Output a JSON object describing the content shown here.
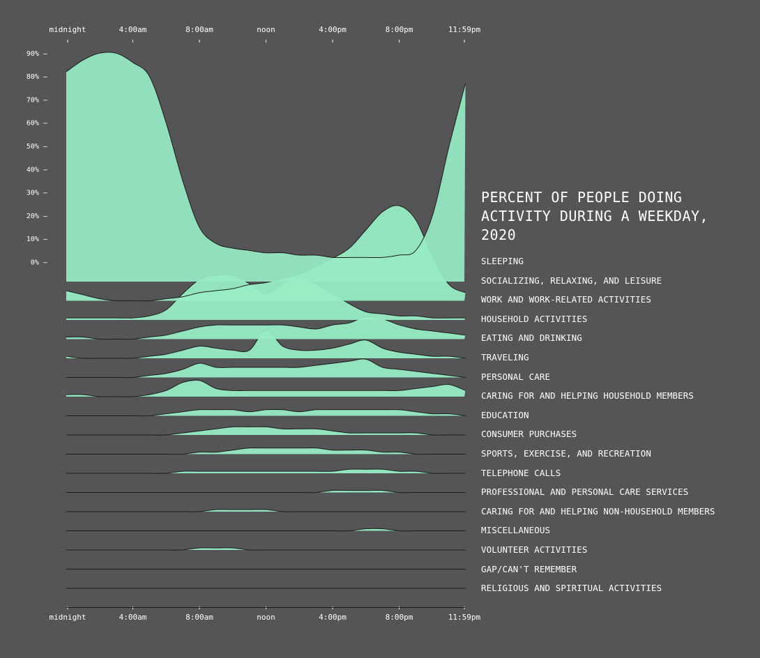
{
  "title_lines": [
    "PERCENT OF PEOPLE DOING",
    "ACTIVITY DURING A WEEKDAY,",
    "2020"
  ],
  "x_ticks": [
    "midnight",
    "4:00am",
    "8:00am",
    "noon",
    "4:00pm",
    "8:00pm",
    "11:59pm"
  ],
  "y_ticks": [
    "0%",
    "10%",
    "20%",
    "30%",
    "40%",
    "50%",
    "60%",
    "70%",
    "80%",
    "90%"
  ],
  "colors": {
    "background": "#555557",
    "fill": "#97ecc4",
    "stroke": "#1b1b1b",
    "text": "#ffffff"
  },
  "chart_data": {
    "type": "area",
    "x_hours": [
      0,
      1,
      2,
      3,
      4,
      5,
      6,
      7,
      8,
      9,
      10,
      11,
      12,
      13,
      14,
      15,
      16,
      17,
      18,
      19,
      20,
      21,
      22,
      23,
      23.98
    ],
    "ylim": [
      0,
      90
    ],
    "series": [
      {
        "name": "SLEEPING",
        "values": [
          82,
          87,
          90,
          90,
          86,
          80,
          60,
          35,
          15,
          8,
          6,
          5,
          4,
          4,
          3,
          3,
          2,
          2,
          2,
          2,
          3,
          5,
          20,
          50,
          77
        ]
      },
      {
        "name": "SOCIALIZING, RELAXING, AND LEISURE",
        "values": [
          5,
          3,
          1,
          0,
          0,
          0,
          1,
          2,
          4,
          5,
          6,
          8,
          9,
          11,
          13,
          17,
          21,
          26,
          35,
          44,
          47,
          40,
          22,
          8,
          4
        ]
      },
      {
        "name": "WORK AND WORK-RELATED ACTIVITIES",
        "values": [
          1,
          1,
          1,
          1,
          1,
          2,
          5,
          13,
          20,
          22,
          22,
          18,
          13,
          18,
          20,
          18,
          13,
          8,
          4,
          3,
          2,
          2,
          1,
          1,
          1
        ]
      },
      {
        "name": "HOUSEHOLD ACTIVITIES",
        "values": [
          1,
          1,
          0,
          0,
          0,
          1,
          2,
          4,
          6,
          7,
          7,
          7,
          7,
          7,
          6,
          5,
          7,
          8,
          11,
          10,
          7,
          5,
          4,
          3,
          2
        ]
      },
      {
        "name": "EATING AND DRINKING",
        "values": [
          1,
          0,
          0,
          0,
          0,
          1,
          2,
          4,
          6,
          5,
          4,
          4,
          14,
          6,
          4,
          4,
          5,
          7,
          9,
          5,
          3,
          2,
          1,
          1,
          0
        ]
      },
      {
        "name": "TRAVELING",
        "values": [
          0,
          0,
          0,
          0,
          0,
          1,
          2,
          4,
          7,
          5,
          5,
          5,
          5,
          5,
          5,
          6,
          7,
          8,
          9,
          5,
          4,
          3,
          2,
          1,
          0
        ]
      },
      {
        "name": "PERSONAL CARE",
        "values": [
          1,
          1,
          0,
          0,
          0,
          1,
          3,
          7,
          8,
          4,
          3,
          3,
          3,
          3,
          3,
          3,
          3,
          3,
          3,
          3,
          3,
          4,
          5,
          6,
          3
        ]
      },
      {
        "name": "CARING FOR AND HELPING HOUSEHOLD MEMBERS",
        "values": [
          0,
          0,
          0,
          0,
          0,
          0,
          1,
          2,
          3,
          3,
          3,
          2,
          3,
          3,
          2,
          3,
          3,
          3,
          3,
          3,
          3,
          2,
          1,
          1,
          0
        ]
      },
      {
        "name": "EDUCATION",
        "values": [
          0,
          0,
          0,
          0,
          0,
          0,
          0,
          1,
          2,
          3,
          4,
          4,
          4,
          3,
          3,
          3,
          2,
          1,
          1,
          1,
          1,
          1,
          0,
          0,
          0
        ]
      },
      {
        "name": "CONSUMER PURCHASES",
        "values": [
          0,
          0,
          0,
          0,
          0,
          0,
          0,
          0,
          1,
          1,
          2,
          3,
          3,
          3,
          3,
          3,
          2,
          2,
          2,
          1,
          1,
          0,
          0,
          0,
          0
        ]
      },
      {
        "name": "SPORTS, EXERCISE, AND RECREATION",
        "values": [
          0,
          0,
          0,
          0,
          0,
          0,
          0,
          1,
          1,
          1,
          1,
          1,
          1,
          1,
          1,
          1,
          1,
          2,
          2,
          2,
          1,
          1,
          0,
          0,
          0
        ]
      },
      {
        "name": "TELEPHONE CALLS",
        "values": [
          0,
          0,
          0,
          0,
          0,
          0,
          0,
          0,
          0,
          0,
          0,
          0,
          0,
          0,
          0,
          0,
          1,
          1,
          1,
          1,
          0,
          0,
          0,
          0,
          0
        ]
      },
      {
        "name": "PROFESSIONAL AND PERSONAL CARE SERVICES",
        "values": [
          0,
          0,
          0,
          0,
          0,
          0,
          0,
          0,
          0,
          1,
          1,
          1,
          1,
          0,
          0,
          0,
          0,
          0,
          0,
          0,
          0,
          0,
          0,
          0,
          0
        ]
      },
      {
        "name": "CARING FOR AND HELPING NON-HOUSEHOLD MEMBERS",
        "values": [
          0,
          0,
          0,
          0,
          0,
          0,
          0,
          0,
          0,
          0,
          0,
          0,
          0,
          0,
          0,
          0,
          0,
          0,
          1,
          1,
          0,
          0,
          0,
          0,
          0
        ]
      },
      {
        "name": "MISCELLANEOUS",
        "values": [
          0,
          0,
          0,
          0,
          0,
          0,
          0,
          0,
          1,
          1,
          1,
          0,
          0,
          0,
          0,
          0,
          0,
          0,
          0,
          0,
          0,
          0,
          0,
          0,
          0
        ]
      },
      {
        "name": "VOLUNTEER ACTIVITIES",
        "values": [
          0,
          0,
          0,
          0,
          0,
          0,
          0,
          0,
          0,
          0,
          0,
          0,
          0,
          0,
          0,
          0,
          0,
          0,
          0,
          0,
          0,
          0,
          0,
          0,
          0
        ]
      },
      {
        "name": "GAP/CAN'T REMEMBER",
        "values": [
          0,
          0,
          0,
          0,
          0,
          0,
          0,
          0,
          0,
          0,
          0,
          0,
          0,
          0,
          0,
          0,
          0,
          0,
          0,
          0,
          0,
          0,
          0,
          0,
          0
        ]
      },
      {
        "name": "RELIGIOUS AND SPIRITUAL ACTIVITIES",
        "values": [
          0,
          0,
          0,
          0,
          0,
          0,
          0,
          0,
          0,
          0,
          0,
          0,
          0,
          0,
          0,
          0,
          0,
          0,
          0,
          0,
          0,
          0,
          0,
          0,
          0
        ]
      }
    ]
  }
}
